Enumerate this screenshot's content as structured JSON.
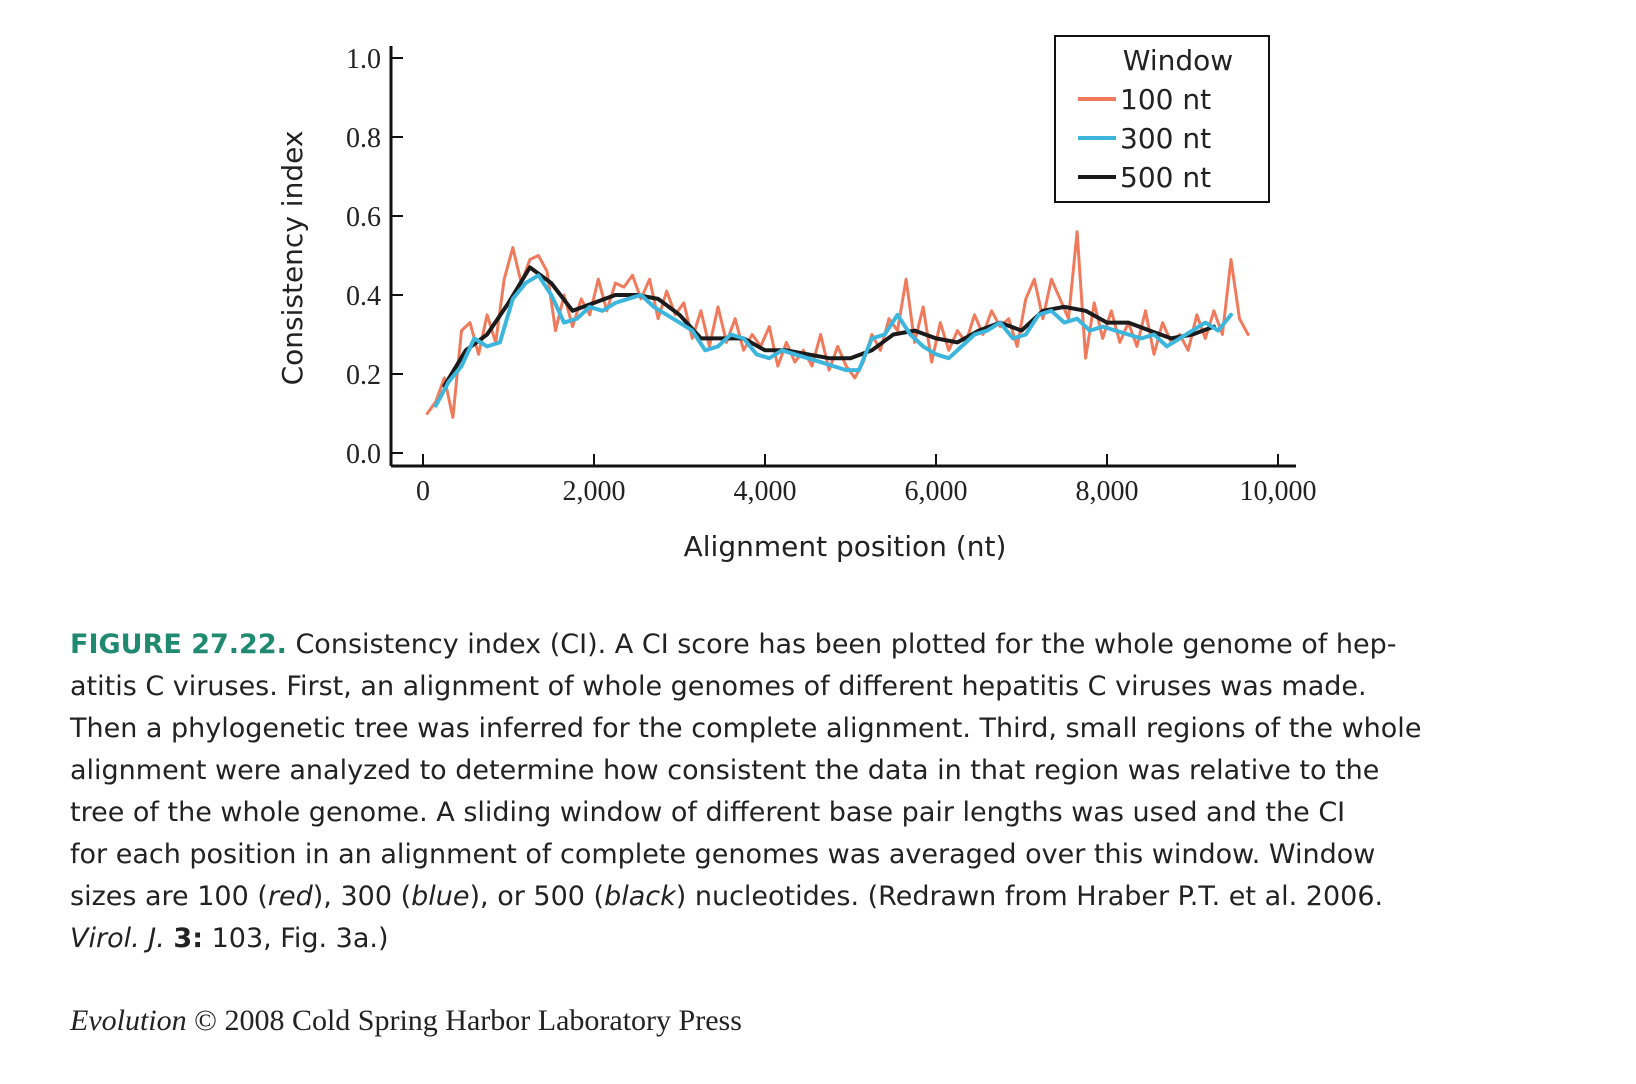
{
  "chart_data": {
    "type": "line",
    "xlabel": "Alignment position (nt)",
    "ylabel": "Consistency index",
    "xlim": [
      -400,
      10300
    ],
    "ylim": [
      0.0,
      1.0
    ],
    "x_ticks": [
      0,
      2000,
      4000,
      6000,
      8000,
      10000
    ],
    "x_tick_labels": [
      "0",
      "2,000",
      "4,000",
      "6,000",
      "8,000",
      "10,000"
    ],
    "y_ticks": [
      0.0,
      0.2,
      0.4,
      0.6,
      0.8,
      1.0
    ],
    "y_tick_labels": [
      "0.0",
      "0.2",
      "0.4",
      "0.6",
      "0.8",
      "1.0"
    ],
    "legend": {
      "title": "Window",
      "position": "top-right"
    },
    "grid": false,
    "series": [
      {
        "name": "100 nt",
        "color": "#ef7b5c",
        "x": [
          50,
          150,
          250,
          350,
          450,
          550,
          650,
          750,
          850,
          950,
          1050,
          1150,
          1250,
          1350,
          1450,
          1550,
          1650,
          1750,
          1850,
          1950,
          2050,
          2150,
          2250,
          2350,
          2450,
          2550,
          2650,
          2750,
          2850,
          2950,
          3050,
          3150,
          3250,
          3350,
          3450,
          3550,
          3650,
          3750,
          3850,
          3950,
          4050,
          4150,
          4250,
          4350,
          4450,
          4550,
          4650,
          4750,
          4850,
          4950,
          5050,
          5150,
          5250,
          5350,
          5450,
          5550,
          5650,
          5750,
          5850,
          5950,
          6050,
          6150,
          6250,
          6350,
          6450,
          6550,
          6650,
          6750,
          6850,
          6950,
          7050,
          7150,
          7250,
          7350,
          7450,
          7550,
          7650,
          7750,
          7850,
          7950,
          8050,
          8150,
          8250,
          8350,
          8450,
          8550,
          8650,
          8750,
          8850,
          8950,
          9050,
          9150,
          9250,
          9350,
          9450,
          9550,
          9650
        ],
        "values": [
          0.1,
          0.13,
          0.19,
          0.09,
          0.31,
          0.33,
          0.25,
          0.35,
          0.28,
          0.44,
          0.52,
          0.43,
          0.49,
          0.5,
          0.46,
          0.31,
          0.4,
          0.32,
          0.39,
          0.35,
          0.44,
          0.36,
          0.43,
          0.42,
          0.45,
          0.39,
          0.44,
          0.34,
          0.41,
          0.35,
          0.38,
          0.29,
          0.36,
          0.27,
          0.37,
          0.28,
          0.34,
          0.26,
          0.3,
          0.27,
          0.32,
          0.22,
          0.28,
          0.23,
          0.26,
          0.22,
          0.3,
          0.21,
          0.27,
          0.22,
          0.19,
          0.23,
          0.3,
          0.26,
          0.34,
          0.31,
          0.44,
          0.28,
          0.37,
          0.23,
          0.33,
          0.26,
          0.31,
          0.28,
          0.35,
          0.3,
          0.36,
          0.32,
          0.34,
          0.27,
          0.39,
          0.44,
          0.34,
          0.44,
          0.39,
          0.34,
          0.56,
          0.24,
          0.38,
          0.29,
          0.36,
          0.28,
          0.33,
          0.27,
          0.36,
          0.25,
          0.33,
          0.28,
          0.3,
          0.26,
          0.35,
          0.29,
          0.36,
          0.3,
          0.49,
          0.34,
          0.3
        ]
      },
      {
        "name": "300 nt",
        "color": "#3cb6dc",
        "x": [
          150,
          300,
          450,
          600,
          750,
          900,
          1050,
          1200,
          1350,
          1500,
          1650,
          1800,
          1950,
          2100,
          2250,
          2400,
          2550,
          2700,
          2850,
          3000,
          3150,
          3300,
          3450,
          3600,
          3750,
          3900,
          4050,
          4200,
          4350,
          4500,
          4650,
          4800,
          4950,
          5100,
          5250,
          5400,
          5550,
          5700,
          5850,
          6000,
          6150,
          6300,
          6450,
          6600,
          6750,
          6900,
          7050,
          7200,
          7350,
          7500,
          7650,
          7800,
          7950,
          8100,
          8250,
          8400,
          8550,
          8700,
          8850,
          9000,
          9150,
          9300,
          9450
        ],
        "values": [
          0.12,
          0.18,
          0.22,
          0.29,
          0.27,
          0.28,
          0.39,
          0.43,
          0.45,
          0.4,
          0.33,
          0.34,
          0.37,
          0.36,
          0.38,
          0.39,
          0.4,
          0.37,
          0.35,
          0.33,
          0.31,
          0.26,
          0.27,
          0.3,
          0.29,
          0.25,
          0.24,
          0.26,
          0.25,
          0.24,
          0.23,
          0.22,
          0.21,
          0.21,
          0.29,
          0.3,
          0.35,
          0.3,
          0.27,
          0.25,
          0.24,
          0.27,
          0.3,
          0.31,
          0.33,
          0.29,
          0.3,
          0.35,
          0.36,
          0.33,
          0.34,
          0.31,
          0.32,
          0.31,
          0.3,
          0.29,
          0.3,
          0.27,
          0.29,
          0.31,
          0.33,
          0.31,
          0.35
        ]
      },
      {
        "name": "500 nt",
        "color": "#1b1b1b",
        "x": [
          250,
          500,
          750,
          1000,
          1250,
          1500,
          1750,
          2000,
          2250,
          2500,
          2750,
          3000,
          3250,
          3500,
          3750,
          4000,
          4250,
          4500,
          4750,
          5000,
          5250,
          5500,
          5750,
          6000,
          6250,
          6500,
          6750,
          7000,
          7250,
          7500,
          7750,
          8000,
          8250,
          8500,
          8750,
          9000,
          9250
        ],
        "values": [
          0.17,
          0.26,
          0.3,
          0.38,
          0.47,
          0.43,
          0.36,
          0.38,
          0.4,
          0.4,
          0.39,
          0.35,
          0.29,
          0.29,
          0.29,
          0.26,
          0.26,
          0.25,
          0.24,
          0.24,
          0.26,
          0.3,
          0.31,
          0.29,
          0.28,
          0.31,
          0.33,
          0.31,
          0.36,
          0.37,
          0.36,
          0.33,
          0.33,
          0.31,
          0.29,
          0.3,
          0.32
        ]
      }
    ]
  },
  "caption": {
    "label": "FIGURE 27.22.",
    "line1": " Consistency index (CI). A CI score has been plotted for the whole genome of hep-",
    "line2": "atitis C viruses. First, an alignment of whole genomes of different hepatitis C viruses was made.",
    "line3": "Then a phylogenetic tree was inferred for the complete alignment. Third, small regions of the whole",
    "line4": "alignment were analyzed to determine how consistent the data in that region was relative to the",
    "line5": "tree of the whole genome. A sliding window of different base pair lengths was used and the CI",
    "line6": "for each position in an alignment of complete genomes was averaged over this window. Window",
    "line7a": "sizes are 100 (",
    "line7b": "red",
    "line7c": "), 300 (",
    "line7d": "blue",
    "line7e": "), or 500 (",
    "line7f": "black",
    "line7g": ") nucleotides. (Redrawn from Hraber P.T. et al. 2006.",
    "line8a": "Virol. J.",
    "line8b": "3:",
    "line8c": " 103, Fig. 3a.)"
  },
  "credit": {
    "book": "Evolution",
    "rest": " © 2008 Cold Spring Harbor Laboratory Press"
  }
}
